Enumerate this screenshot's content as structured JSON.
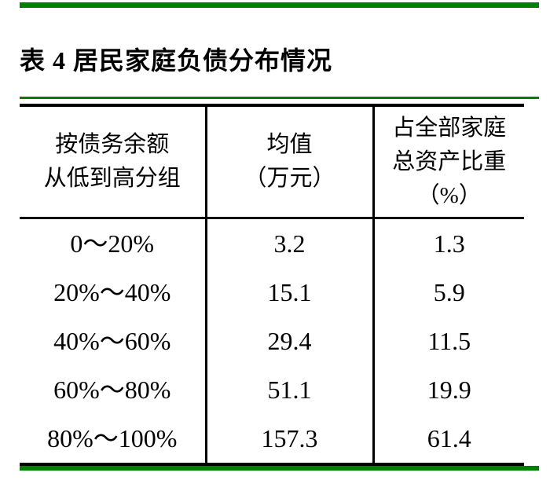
{
  "title": "表 4 居民家庭负债分布情况",
  "colors": {
    "rule_green": "#008000",
    "table_border": "#000000",
    "text": "#000000",
    "background": "#ffffff"
  },
  "table": {
    "columns": [
      {
        "lines": [
          "按债务余额",
          "从低到高分组"
        ]
      },
      {
        "lines": [
          "均值",
          "（万元）"
        ]
      },
      {
        "lines": [
          "占全部家庭",
          "总资产比重",
          "（%）"
        ]
      }
    ],
    "rows": [
      {
        "group": "0～20%",
        "mean": "3.2",
        "share": "1.3"
      },
      {
        "group": "20%～40%",
        "mean": "15.1",
        "share": "5.9"
      },
      {
        "group": "40%～60%",
        "mean": "29.4",
        "share": "11.5"
      },
      {
        "group": "60%～80%",
        "mean": "51.1",
        "share": "19.9"
      },
      {
        "group": "80%～100%",
        "mean": "157.3",
        "share": "61.4"
      }
    ]
  }
}
